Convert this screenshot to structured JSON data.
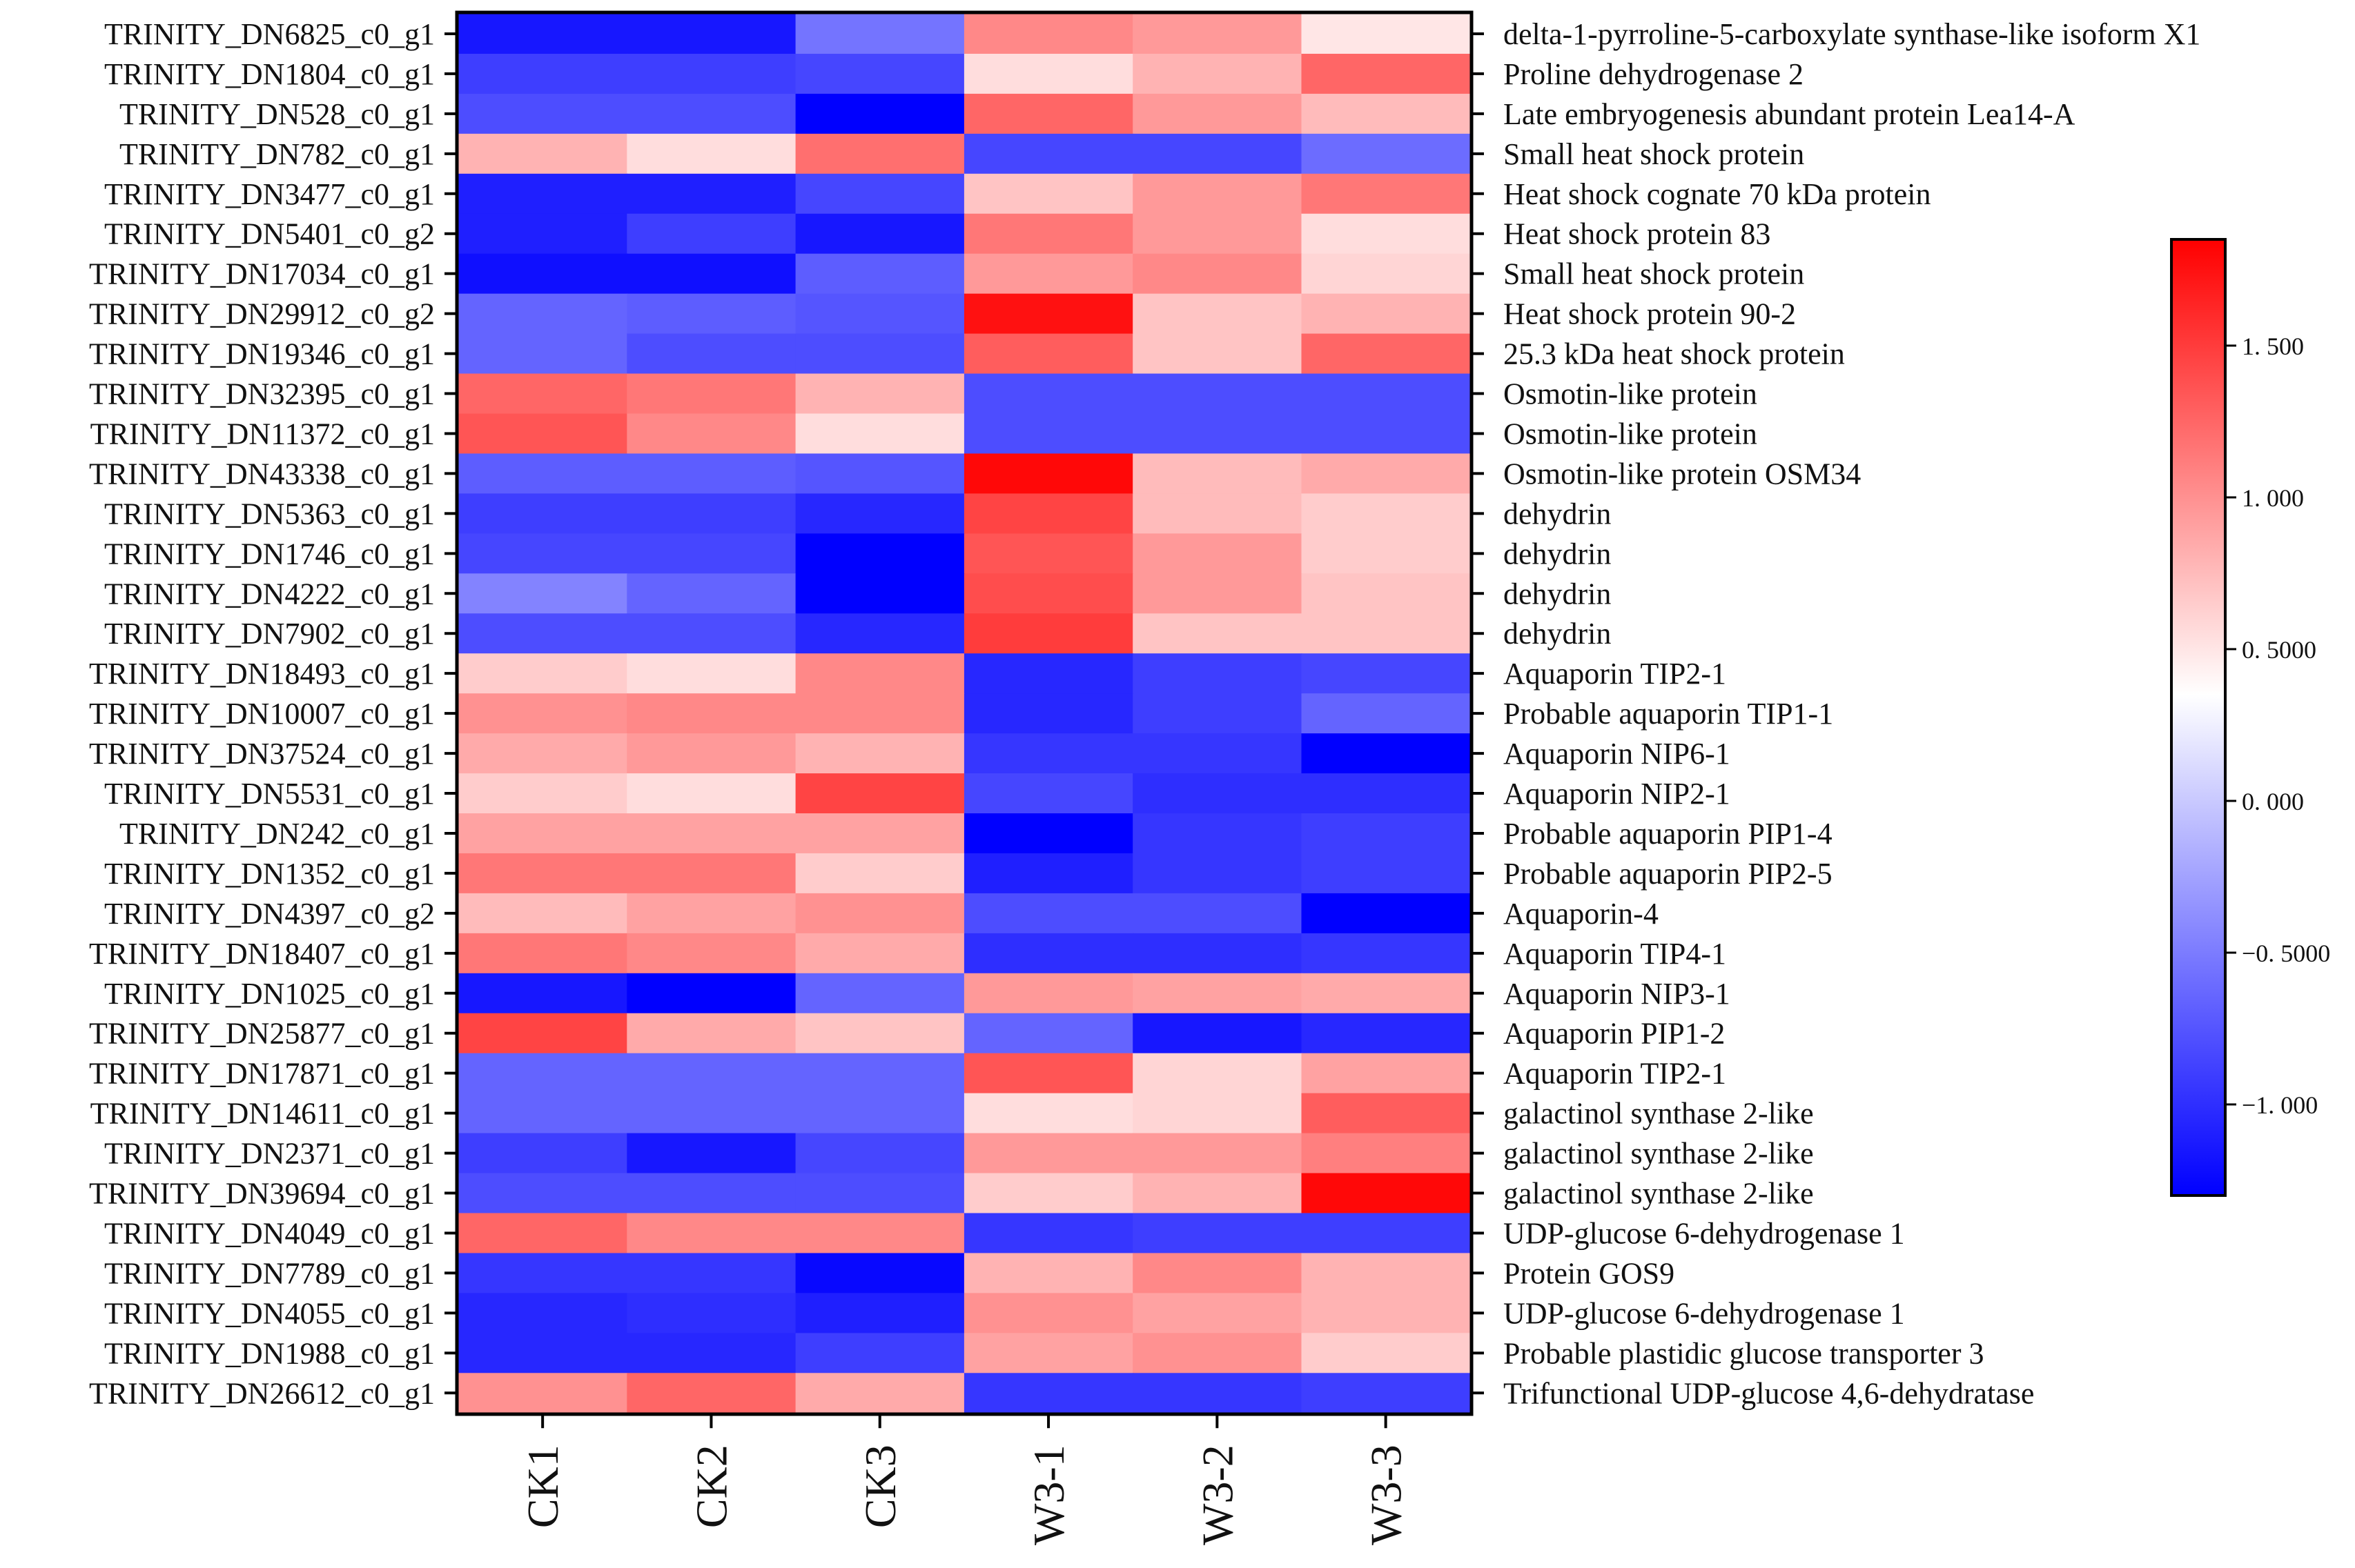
{
  "chart_data": {
    "type": "heatmap",
    "columns": [
      "CK1",
      "CK2",
      "CK3",
      "W3-1",
      "W3-2",
      "W3-3"
    ],
    "rows": [
      {
        "id": "TRINITY_DN6825_c0_g1",
        "annotation": "delta-1-pyrroline-5-carboxylate synthase-like isoform X1",
        "values": [
          -1.15,
          -1.15,
          -0.55,
          1.05,
          0.95,
          0.5
        ]
      },
      {
        "id": "TRINITY_DN1804_c0_g1",
        "annotation": "Proline dehydrogenase 2",
        "values": [
          -0.9,
          -0.9,
          -0.85,
          0.55,
          0.8,
          1.25
        ]
      },
      {
        "id": "TRINITY_DN528_c0_g1",
        "annotation": "Late embryogenesis abundant protein Lea14-A",
        "values": [
          -0.8,
          -0.8,
          -1.3,
          1.25,
          0.95,
          0.75
        ]
      },
      {
        "id": "TRINITY_DN782_c0_g1",
        "annotation": "Small heat shock protein",
        "values": [
          0.8,
          0.55,
          1.2,
          -0.85,
          -0.85,
          -0.6
        ]
      },
      {
        "id": "TRINITY_DN3477_c0_g1",
        "annotation": "Heat shock cognate 70 kDa protein",
        "values": [
          -1.1,
          -1.1,
          -0.85,
          0.7,
          0.95,
          1.15
        ]
      },
      {
        "id": "TRINITY_DN5401_c0_g2",
        "annotation": "Heat shock protein 83",
        "values": [
          -1.1,
          -0.9,
          -1.15,
          1.15,
          0.95,
          0.55
        ]
      },
      {
        "id": "TRINITY_DN17034_c0_g1",
        "annotation": "Small heat shock protein",
        "values": [
          -1.2,
          -1.2,
          -0.7,
          0.95,
          1.05,
          0.6
        ]
      },
      {
        "id": "TRINITY_DN29912_c0_g2",
        "annotation": "Heat shock protein 90-2",
        "values": [
          -0.65,
          -0.7,
          -0.75,
          1.75,
          0.7,
          0.8
        ]
      },
      {
        "id": "TRINITY_DN19346_c0_g1",
        "annotation": "25.3 kDa heat shock protein",
        "values": [
          -0.65,
          -0.8,
          -0.8,
          1.3,
          0.7,
          1.25
        ]
      },
      {
        "id": "TRINITY_DN32395_c0_g1",
        "annotation": "Osmotin-like protein",
        "values": [
          1.25,
          1.15,
          0.8,
          -0.8,
          -0.8,
          -0.8
        ]
      },
      {
        "id": "TRINITY_DN11372_c0_g1",
        "annotation": "Osmotin-like protein",
        "values": [
          1.35,
          1.05,
          0.55,
          -0.8,
          -0.8,
          -0.8
        ]
      },
      {
        "id": "TRINITY_DN43338_c0_g1",
        "annotation": "Osmotin-like protein OSM34",
        "values": [
          -0.7,
          -0.7,
          -0.75,
          1.8,
          0.75,
          0.85
        ]
      },
      {
        "id": "TRINITY_DN5363_c0_g1",
        "annotation": "dehydrin",
        "values": [
          -0.9,
          -0.9,
          -1.05,
          1.45,
          0.75,
          0.65
        ]
      },
      {
        "id": "TRINITY_DN1746_c0_g1",
        "annotation": "dehydrin",
        "values": [
          -0.85,
          -0.85,
          -1.35,
          1.35,
          0.95,
          0.65
        ]
      },
      {
        "id": "TRINITY_DN4222_c0_g1",
        "annotation": "dehydrin",
        "values": [
          -0.45,
          -0.65,
          -1.35,
          1.4,
          0.95,
          0.7
        ]
      },
      {
        "id": "TRINITY_DN7902_c0_g1",
        "annotation": "dehydrin",
        "values": [
          -0.8,
          -0.8,
          -1.05,
          1.5,
          0.7,
          0.7
        ]
      },
      {
        "id": "TRINITY_DN18493_c0_g1",
        "annotation": "Aquaporin TIP2-1",
        "values": [
          0.65,
          0.55,
          1.05,
          -1.05,
          -0.9,
          -0.85
        ]
      },
      {
        "id": "TRINITY_DN10007_c0_g1",
        "annotation": "Probable aquaporin TIP1-1",
        "values": [
          1.0,
          1.05,
          1.05,
          -1.05,
          -0.9,
          -0.65
        ]
      },
      {
        "id": "TRINITY_DN37524_c0_g1",
        "annotation": "Aquaporin NIP6-1",
        "values": [
          0.85,
          0.95,
          0.8,
          -0.95,
          -0.95,
          -1.3
        ]
      },
      {
        "id": "TRINITY_DN5531_c0_g1",
        "annotation": "Aquaporin NIP2-1",
        "values": [
          0.65,
          0.55,
          1.45,
          -0.85,
          -1.0,
          -1.0
        ]
      },
      {
        "id": "TRINITY_DN242_c0_g1",
        "annotation": "Probable aquaporin PIP1-4",
        "values": [
          0.9,
          0.9,
          0.9,
          -1.3,
          -0.95,
          -0.9
        ]
      },
      {
        "id": "TRINITY_DN1352_c0_g1",
        "annotation": "Probable aquaporin PIP2-5",
        "values": [
          1.15,
          1.15,
          0.65,
          -1.1,
          -0.95,
          -0.9
        ]
      },
      {
        "id": "TRINITY_DN4397_c0_g2",
        "annotation": "Aquaporin-4",
        "values": [
          0.75,
          0.9,
          1.0,
          -0.8,
          -0.8,
          -1.35
        ]
      },
      {
        "id": "TRINITY_DN18407_c0_g1",
        "annotation": "Aquaporin TIP4-1",
        "values": [
          1.15,
          1.05,
          0.85,
          -1.0,
          -1.0,
          -0.95
        ]
      },
      {
        "id": "TRINITY_DN1025_c0_g1",
        "annotation": "Aquaporin NIP3-1",
        "values": [
          -1.15,
          -1.3,
          -0.65,
          0.95,
          0.9,
          0.85
        ]
      },
      {
        "id": "TRINITY_DN25877_c0_g1",
        "annotation": "Aquaporin PIP1-2",
        "values": [
          1.45,
          0.85,
          0.7,
          -0.65,
          -1.15,
          -1.05
        ]
      },
      {
        "id": "TRINITY_DN17871_c0_g1",
        "annotation": "Aquaporin TIP2-1",
        "values": [
          -0.65,
          -0.65,
          -0.65,
          1.35,
          0.6,
          0.9
        ]
      },
      {
        "id": "TRINITY_DN14611_c0_g1",
        "annotation": "galactinol synthase 2-like",
        "values": [
          -0.65,
          -0.65,
          -0.65,
          0.55,
          0.6,
          1.3
        ]
      },
      {
        "id": "TRINITY_DN2371_c0_g1",
        "annotation": "galactinol synthase 2-like",
        "values": [
          -0.9,
          -1.15,
          -0.85,
          0.95,
          0.95,
          1.1
        ]
      },
      {
        "id": "TRINITY_DN39694_c0_g1",
        "annotation": "galactinol synthase 2-like",
        "values": [
          -0.8,
          -0.8,
          -0.8,
          0.65,
          0.8,
          1.8
        ]
      },
      {
        "id": "TRINITY_DN4049_c0_g1",
        "annotation": "UDP-glucose 6-dehydrogenase 1",
        "values": [
          1.25,
          1.05,
          1.05,
          -0.95,
          -0.9,
          -0.9
        ]
      },
      {
        "id": "TRINITY_DN7789_c0_g1",
        "annotation": "Protein GOS9",
        "values": [
          -0.95,
          -0.95,
          -1.25,
          0.8,
          1.05,
          0.8
        ]
      },
      {
        "id": "TRINITY_DN4055_c0_g1",
        "annotation": "UDP-glucose 6-dehydrogenase 1",
        "values": [
          -1.05,
          -1.0,
          -1.1,
          1.0,
          0.9,
          0.8
        ]
      },
      {
        "id": "TRINITY_DN1988_c0_g1",
        "annotation": "Probable plastidic glucose transporter 3",
        "values": [
          -1.05,
          -1.05,
          -0.9,
          0.9,
          1.0,
          0.65
        ]
      },
      {
        "id": "TRINITY_DN26612_c0_g1",
        "annotation": "Trifunctional UDP-glucose 4,6-dehydratase",
        "values": [
          1.0,
          1.25,
          0.85,
          -0.95,
          -0.95,
          -0.9
        ]
      }
    ],
    "colorbar": {
      "min": -1.3,
      "max": 1.85,
      "ticks": [
        {
          "value": 1.5,
          "label": "1. 500"
        },
        {
          "value": 1.0,
          "label": "1. 000"
        },
        {
          "value": 0.5,
          "label": "0. 5000"
        },
        {
          "value": 0.0,
          "label": "0. 000"
        },
        {
          "value": -0.5,
          "label": "−0. 5000"
        },
        {
          "value": -1.0,
          "label": "−1. 000"
        }
      ],
      "low_color": "#0000ff",
      "mid_color": "#ffffff",
      "high_color": "#ff0000",
      "mid_value": 0.35
    },
    "title": "",
    "xlabel": "",
    "ylabel": ""
  }
}
